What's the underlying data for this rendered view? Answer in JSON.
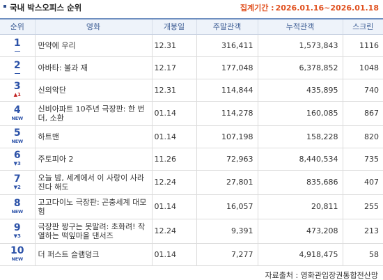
{
  "header": {
    "title": "국내 박스오피스 순위",
    "period_label": "집계기간 :",
    "period_value": "2026.01.16~2026.01.18"
  },
  "columns": [
    "순위",
    "영화",
    "개봉일",
    "주말관객",
    "누적관객",
    "스크린"
  ],
  "rows": [
    {
      "rank": "1",
      "change": "flat",
      "change_text": "",
      "title": "만약에 우리",
      "release": "12.31",
      "weekend": "316,411",
      "total": "1,573,843",
      "screens": "1116"
    },
    {
      "rank": "2",
      "change": "flat",
      "change_text": "",
      "title": "아바타: 불과 재",
      "release": "12.17",
      "weekend": "177,048",
      "total": "6,378,852",
      "screens": "1048"
    },
    {
      "rank": "3",
      "change": "up",
      "change_text": "▲1",
      "title": "신의악단",
      "release": "12.31",
      "weekend": "114,844",
      "total": "435,895",
      "screens": "740"
    },
    {
      "rank": "4",
      "change": "new",
      "change_text": "NEW",
      "title": "신비아파트 10주년 극장판: 한 번 더, 소환",
      "release": "01.14",
      "weekend": "114,278",
      "total": "160,085",
      "screens": "867"
    },
    {
      "rank": "5",
      "change": "new",
      "change_text": "NEW",
      "title": "하트맨",
      "release": "01.14",
      "weekend": "107,198",
      "total": "158,228",
      "screens": "820"
    },
    {
      "rank": "6",
      "change": "down",
      "change_text": "▼3",
      "title": "주토피아 2",
      "release": "11.26",
      "weekend": "72,963",
      "total": "8,440,534",
      "screens": "735"
    },
    {
      "rank": "7",
      "change": "down",
      "change_text": "▼2",
      "title": "오늘 밤, 세계에서 이 사랑이 사라진다 해도",
      "release": "12.24",
      "weekend": "27,801",
      "total": "835,686",
      "screens": "407"
    },
    {
      "rank": "8",
      "change": "new",
      "change_text": "NEW",
      "title": "고고다이노 극장판: 곤충세계 대모험",
      "release": "01.14",
      "weekend": "16,057",
      "total": "20,811",
      "screens": "255"
    },
    {
      "rank": "9",
      "change": "down",
      "change_text": "▼3",
      "title": "극장판 짱구는 못말려: 초화려! 작열하는 떡잎마을 댄서즈",
      "release": "12.24",
      "weekend": "9,391",
      "total": "473,208",
      "screens": "213"
    },
    {
      "rank": "10",
      "change": "new",
      "change_text": "NEW",
      "title": "더 퍼스트 슬램덩크",
      "release": "01.14",
      "weekend": "7,277",
      "total": "4,918,475",
      "screens": "58"
    }
  ],
  "footer": {
    "source": "자료출처 : 영화관입장권통합전산망"
  },
  "colors": {
    "accent": "#e0501e",
    "rank_blue": "#2c52a8",
    "up_red": "#c02020",
    "header_bg": "#eef3fa"
  }
}
